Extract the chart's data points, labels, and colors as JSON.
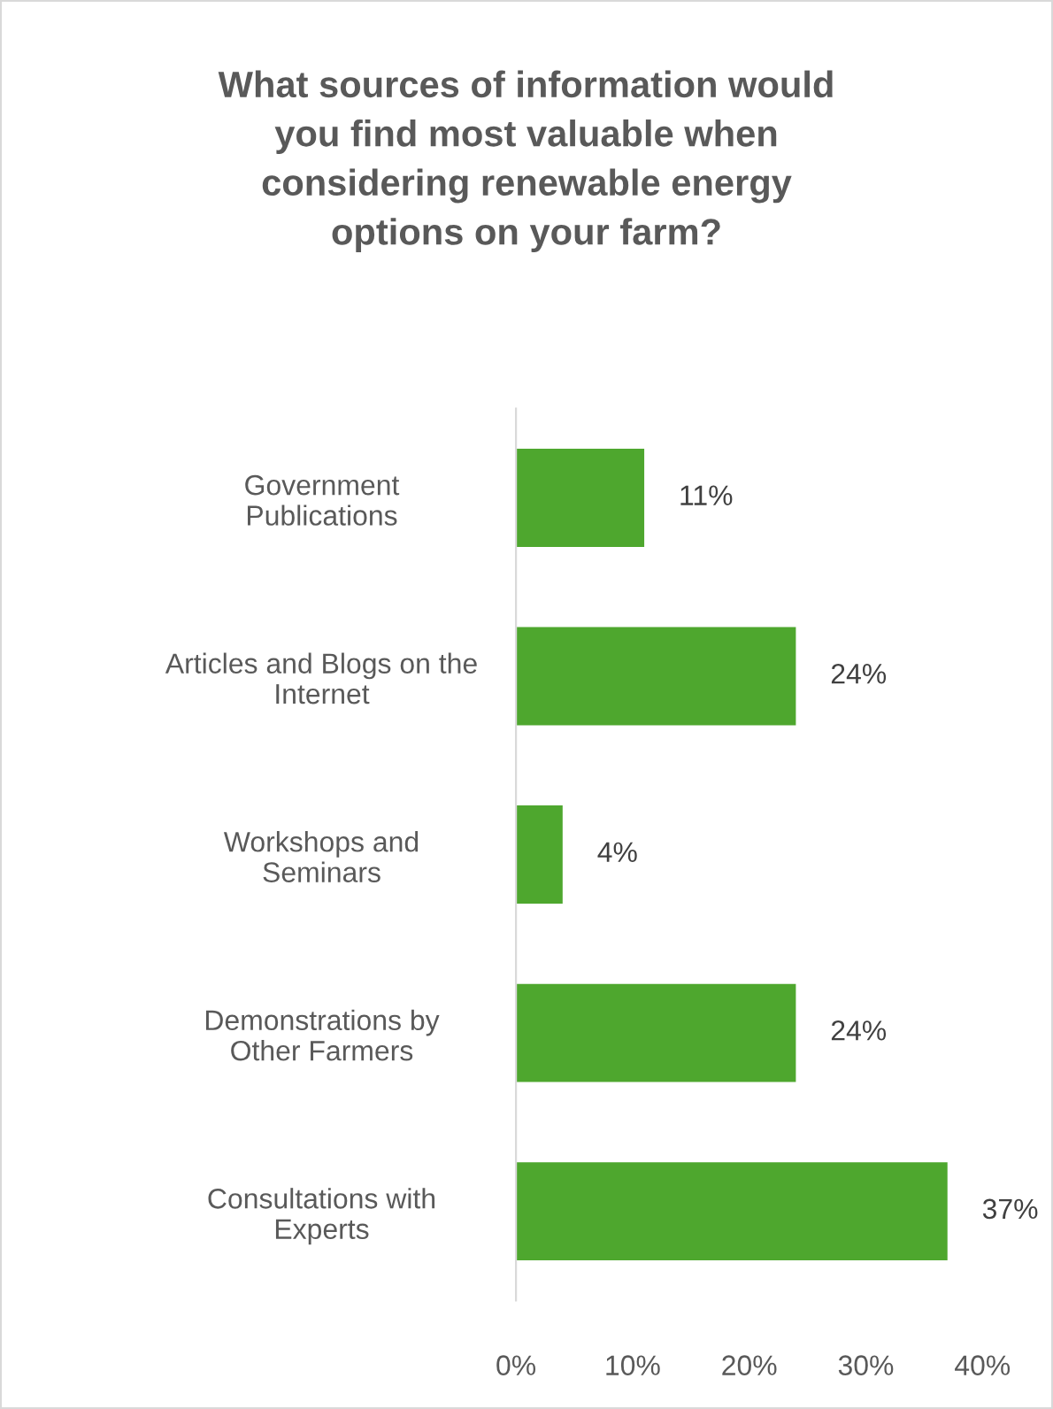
{
  "chart_data": {
    "type": "bar",
    "orientation": "horizontal",
    "title": "What sources of information would\nyou find most valuable when\nconsidering renewable energy\noptions on your farm?",
    "categories": [
      "Government\nPublications",
      "Articles and Blogs on the\nInternet",
      "Workshops and\nSeminars",
      "Demonstrations by\nOther Farmers",
      "Consultations with\nExperts"
    ],
    "values": [
      11,
      24,
      4,
      24,
      37
    ],
    "value_labels": [
      "11%",
      "24%",
      "4%",
      "24%",
      "37%"
    ],
    "color": "#4ea72e",
    "xlim": [
      0,
      40
    ],
    "xticks": [
      {
        "value": 0,
        "label": "0%"
      },
      {
        "value": 10,
        "label": "10%"
      },
      {
        "value": 20,
        "label": "20%"
      },
      {
        "value": 30,
        "label": "30%"
      },
      {
        "value": 40,
        "label": "40%"
      }
    ],
    "grid": false,
    "legend": false
  }
}
